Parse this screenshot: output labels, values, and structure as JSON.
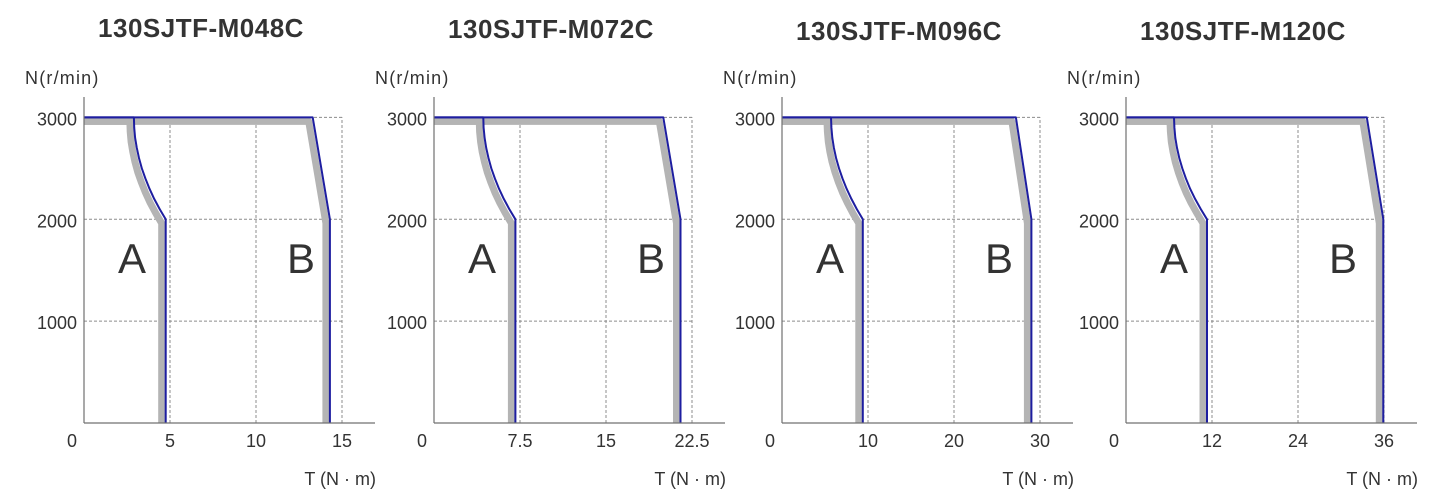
{
  "chart_data": [
    {
      "type": "line",
      "title": "130SJTF-M048C",
      "xlabel": "T (N · m)",
      "ylabel": "N(r/min)",
      "xlim": [
        0,
        16.92
      ],
      "ylim": [
        0,
        3200
      ],
      "xticks": [
        0,
        5,
        10,
        15
      ],
      "yticks": [
        1000,
        2000,
        3000
      ],
      "grid": true,
      "series": [
        {
          "name": "A",
          "x": [
            0,
            2.9,
            2.92,
            2.97,
            3.07,
            3.2,
            3.36,
            3.57,
            3.81,
            4.08,
            4.4,
            4.75,
            4.75
          ],
          "y": [
            3000,
            3000,
            2900,
            2800,
            2700,
            2600,
            2500,
            2400,
            2300,
            2200,
            2100,
            2000,
            0
          ]
        },
        {
          "name": "B",
          "x": [
            0,
            13.3,
            14.3,
            14.3
          ],
          "y": [
            3000,
            3000,
            2000,
            0
          ]
        }
      ]
    },
    {
      "type": "line",
      "title": "130SJTF-M072C",
      "xlabel": "T (N · m)",
      "ylabel": "N(r/min)",
      "xlim": [
        0,
        25.38
      ],
      "ylim": [
        0,
        3200
      ],
      "xticks": [
        0,
        7.5,
        15,
        22.5
      ],
      "yticks": [
        1000,
        2000,
        3000
      ],
      "grid": true,
      "series": [
        {
          "name": "A",
          "x": [
            0,
            4.3,
            4.33,
            4.41,
            4.55,
            4.75,
            5.0,
            5.31,
            5.67,
            6.09,
            6.57,
            7.1,
            7.1
          ],
          "y": [
            3000,
            3000,
            2900,
            2800,
            2700,
            2600,
            2500,
            2400,
            2300,
            2200,
            2100,
            2000,
            0
          ]
        },
        {
          "name": "B",
          "x": [
            0,
            20,
            21.5,
            21.5
          ],
          "y": [
            3000,
            3000,
            2000,
            0
          ]
        }
      ]
    },
    {
      "type": "line",
      "title": "130SJTF-M096C",
      "xlabel": "T (N · m)",
      "ylabel": "N(r/min)",
      "xlim": [
        0,
        33.84
      ],
      "ylim": [
        0,
        3200
      ],
      "xticks": [
        0,
        10,
        20,
        30
      ],
      "yticks": [
        1000,
        2000,
        3000
      ],
      "grid": true,
      "series": [
        {
          "name": "A",
          "x": [
            0,
            5.7,
            5.74,
            5.85,
            6.03,
            6.29,
            6.63,
            7.03,
            7.51,
            8.07,
            8.7,
            9.4,
            9.4
          ],
          "y": [
            3000,
            3000,
            2900,
            2800,
            2700,
            2600,
            2500,
            2400,
            2300,
            2200,
            2100,
            2000,
            0
          ]
        },
        {
          "name": "B",
          "x": [
            0,
            27.2,
            29,
            29
          ],
          "y": [
            3000,
            3000,
            2000,
            0
          ]
        }
      ]
    },
    {
      "type": "line",
      "title": "130SJTF-M120C",
      "xlabel": "T (N · m)",
      "ylabel": "N(r/min)",
      "xlim": [
        0,
        40.6
      ],
      "ylim": [
        0,
        3200
      ],
      "xticks": [
        0,
        12,
        24,
        36
      ],
      "yticks": [
        1000,
        2000,
        3000
      ],
      "grid": true,
      "series": [
        {
          "name": "A",
          "x": [
            0,
            6.7,
            6.75,
            6.88,
            7.11,
            7.44,
            7.85,
            8.36,
            8.95,
            9.64,
            10.43,
            11.3,
            11.3
          ],
          "y": [
            3000,
            3000,
            2900,
            2800,
            2700,
            2600,
            2500,
            2400,
            2300,
            2200,
            2100,
            2000,
            0
          ]
        },
        {
          "name": "B",
          "x": [
            0,
            33.6,
            35.9,
            35.9
          ],
          "y": [
            3000,
            3000,
            2000,
            0
          ]
        }
      ]
    }
  ],
  "colors": {
    "curve": "#1e1ea0",
    "zone_band": "#b4b4b4",
    "grid": "#8c8c8c",
    "axis": "#707070",
    "text": "#333333"
  }
}
